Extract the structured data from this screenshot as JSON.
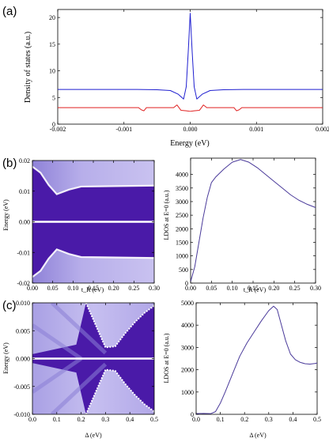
{
  "chart_data": [
    {
      "id": "a",
      "panel_label": "(a)",
      "type": "line",
      "xlabel": "Energy (eV)",
      "ylabel": "Density of states (a.u.)",
      "xlim": [
        -0.002,
        0.002
      ],
      "ylim": [
        0,
        21.5
      ],
      "xticks": [
        -0.002,
        -0.001,
        0.0,
        0.001,
        0.002
      ],
      "xtick_labels": [
        "-0.002",
        "-0.001",
        "0.000",
        "0.001",
        "0.002"
      ],
      "yticks": [
        0,
        5,
        10,
        15,
        20
      ],
      "ytick_labels": [
        "0",
        "5",
        "10",
        "15",
        "20"
      ],
      "series": [
        {
          "color": "#1f1fd0",
          "x": [
            -0.002,
            -0.0008,
            -0.0005,
            -0.0003,
            -0.00018,
            -0.0001,
            -6e-05,
            -3e-05,
            0.0,
            3e-05,
            6e-05,
            0.0001,
            0.00018,
            0.0003,
            0.0005,
            0.0008,
            0.002
          ],
          "y": [
            6.5,
            6.5,
            6.45,
            6.3,
            5.6,
            4.7,
            7.0,
            13.5,
            20.8,
            13.5,
            7.0,
            4.7,
            5.6,
            6.3,
            6.45,
            6.5,
            6.5
          ]
        },
        {
          "color": "#e02020",
          "x": [
            -0.002,
            -0.00078,
            -0.00074,
            -0.0007,
            -0.00066,
            -0.00025,
            -0.0002,
            -0.00014,
            -6e-05,
            0.0,
            6e-05,
            0.00014,
            0.0002,
            0.00025,
            0.00066,
            0.0007,
            0.00074,
            0.00078,
            0.002
          ],
          "y": [
            3.1,
            3.1,
            2.7,
            2.5,
            3.1,
            3.1,
            3.6,
            2.6,
            2.5,
            2.4,
            2.5,
            2.6,
            3.6,
            3.1,
            3.1,
            2.5,
            2.7,
            3.1,
            3.1
          ]
        }
      ]
    },
    {
      "id": "b-map",
      "panel_label": "(b)",
      "type": "heatmap",
      "xlabel": "t_R (eV)",
      "ylabel": "Energy (eV)",
      "xlim": [
        0.0,
        0.3
      ],
      "ylim": [
        -0.02,
        0.02
      ],
      "xticks": [
        0.0,
        0.05,
        0.1,
        0.15,
        0.2,
        0.25,
        0.3
      ],
      "xtick_labels": [
        "0.00",
        "0.05",
        "0.10",
        "0.15",
        "0.20",
        "0.25",
        "0.30"
      ],
      "yticks": [
        -0.02,
        -0.01,
        0.0,
        0.01,
        0.02
      ],
      "ytick_labels": [
        "-0.02",
        "-0.01",
        "0.00",
        "0.01",
        "0.02"
      ],
      "features": {
        "band_edge": {
          "x": [
            0.0,
            0.02,
            0.04,
            0.06,
            0.09,
            0.12,
            0.3
          ],
          "y": [
            0.018,
            0.016,
            0.012,
            0.009,
            0.0105,
            0.0115,
            0.0118
          ]
        },
        "zero_mode": {
          "y": 0.0
        }
      },
      "colors": {
        "low": "#4a1aa8",
        "high": "#ffffff"
      }
    },
    {
      "id": "b-ldos",
      "type": "line",
      "xlabel": "t_R (eV)",
      "ylabel": "LDOS at E=0 (a.u.)",
      "xlim": [
        0.0,
        0.3
      ],
      "ylim": [
        0,
        4600
      ],
      "xticks": [
        0.0,
        0.05,
        0.1,
        0.15,
        0.2,
        0.25,
        0.3
      ],
      "xtick_labels": [
        "0.00",
        "0.05",
        "0.10",
        "0.15",
        "0.20",
        "0.25",
        "0.30"
      ],
      "yticks": [
        0,
        500,
        1000,
        1500,
        2000,
        2500,
        3000,
        3500,
        4000
      ],
      "ytick_labels": [
        "0",
        "500",
        "1000",
        "1500",
        "2000",
        "2500",
        "3000",
        "3500",
        "4000"
      ],
      "series": [
        {
          "color": "#4a3a9a",
          "x": [
            0.0,
            0.01,
            0.02,
            0.03,
            0.04,
            0.05,
            0.06,
            0.08,
            0.1,
            0.12,
            0.14,
            0.16,
            0.18,
            0.2,
            0.22,
            0.24,
            0.26,
            0.28,
            0.3
          ],
          "y": [
            50,
            600,
            1500,
            2400,
            3150,
            3700,
            3900,
            4200,
            4450,
            4550,
            4450,
            4250,
            4000,
            3750,
            3500,
            3250,
            3050,
            2900,
            2780
          ]
        }
      ]
    },
    {
      "id": "c-map",
      "panel_label": "(c)",
      "type": "heatmap",
      "xlabel": "Δ (eV)",
      "ylabel": "Energy (eV)",
      "xlim": [
        0.0,
        0.5
      ],
      "ylim": [
        -0.01,
        0.01
      ],
      "xticks": [
        0.0,
        0.1,
        0.2,
        0.3,
        0.4,
        0.5
      ],
      "xtick_labels": [
        "0.0",
        "0.1",
        "0.2",
        "0.3",
        "0.4",
        "0.5"
      ],
      "yticks": [
        -0.01,
        -0.005,
        0.0,
        0.005,
        0.01
      ],
      "ytick_labels": [
        "-0.010",
        "-0.005",
        "0.000",
        "0.005",
        "0.010"
      ],
      "features": {
        "gap_edge": {
          "x": [
            0.22,
            0.26,
            0.3,
            0.34,
            0.38,
            0.42,
            0.46,
            0.5
          ],
          "y": [
            0.01,
            0.006,
            0.002,
            0.0022,
            0.0045,
            0.0065,
            0.0082,
            0.0095
          ]
        },
        "zero_mode": {
          "y": 0.0
        }
      },
      "colors": {
        "low": "#4a1aa8",
        "high": "#ffffff"
      }
    },
    {
      "id": "c-ldos",
      "type": "line",
      "xlabel": "Δ (eV)",
      "ylabel": "LDOS at E=0 (a.u.)",
      "xlim": [
        0.0,
        0.5
      ],
      "ylim": [
        0,
        5000
      ],
      "xticks": [
        0.0,
        0.1,
        0.2,
        0.3,
        0.4,
        0.5
      ],
      "xtick_labels": [
        "0.0",
        "0.1",
        "0.2",
        "0.3",
        "0.4",
        "0.5"
      ],
      "yticks": [
        0,
        1000,
        2000,
        3000,
        4000,
        5000
      ],
      "ytick_labels": [
        "0",
        "1000",
        "2000",
        "3000",
        "4000",
        "5000"
      ],
      "series": [
        {
          "color": "#4a3a9a",
          "x": [
            0.0,
            0.03,
            0.06,
            0.08,
            0.1,
            0.12,
            0.15,
            0.18,
            0.21,
            0.24,
            0.27,
            0.3,
            0.32,
            0.335,
            0.35,
            0.37,
            0.39,
            0.41,
            0.43,
            0.45,
            0.47,
            0.49,
            0.5
          ],
          "y": [
            30,
            40,
            30,
            120,
            500,
            1000,
            1800,
            2600,
            3200,
            3700,
            4200,
            4650,
            4850,
            4700,
            4100,
            3300,
            2700,
            2450,
            2330,
            2270,
            2250,
            2280,
            2300
          ]
        }
      ]
    }
  ]
}
